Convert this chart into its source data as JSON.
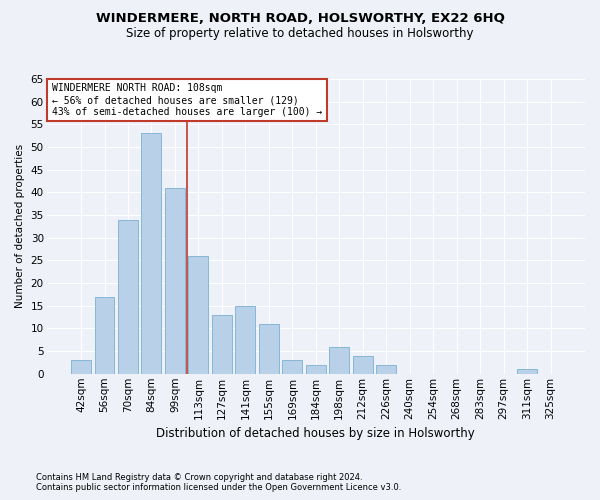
{
  "title": "WINDERMERE, NORTH ROAD, HOLSWORTHY, EX22 6HQ",
  "subtitle": "Size of property relative to detached houses in Holsworthy",
  "xlabel": "Distribution of detached houses by size in Holsworthy",
  "ylabel": "Number of detached properties",
  "categories": [
    "42sqm",
    "56sqm",
    "70sqm",
    "84sqm",
    "99sqm",
    "113sqm",
    "127sqm",
    "141sqm",
    "155sqm",
    "169sqm",
    "184sqm",
    "198sqm",
    "212sqm",
    "226sqm",
    "240sqm",
    "254sqm",
    "268sqm",
    "283sqm",
    "297sqm",
    "311sqm",
    "325sqm"
  ],
  "values": [
    3,
    17,
    34,
    53,
    41,
    26,
    13,
    15,
    11,
    3,
    2,
    6,
    4,
    2,
    0,
    0,
    0,
    0,
    0,
    1,
    0
  ],
  "bar_color": "#b8d0e8",
  "bar_edge_color": "#7aafd4",
  "bar_width": 0.85,
  "vline_x": 4.5,
  "vline_color": "#c0392b",
  "annotation_text": "WINDERMERE NORTH ROAD: 108sqm\n← 56% of detached houses are smaller (129)\n43% of semi-detached houses are larger (100) →",
  "annotation_box_color": "#ffffff",
  "annotation_box_edge": "#c0392b",
  "ylim": [
    0,
    65
  ],
  "yticks": [
    0,
    5,
    10,
    15,
    20,
    25,
    30,
    35,
    40,
    45,
    50,
    55,
    60,
    65
  ],
  "footnote1": "Contains HM Land Registry data © Crown copyright and database right 2024.",
  "footnote2": "Contains public sector information licensed under the Open Government Licence v3.0.",
  "background_color": "#eef2f8",
  "grid_color": "#ffffff",
  "title_fontsize": 9.5,
  "subtitle_fontsize": 8.5,
  "ylabel_fontsize": 7.5,
  "xlabel_fontsize": 8.5,
  "tick_fontsize": 7.5,
  "annot_fontsize": 7.0,
  "footnote_fontsize": 6.0
}
